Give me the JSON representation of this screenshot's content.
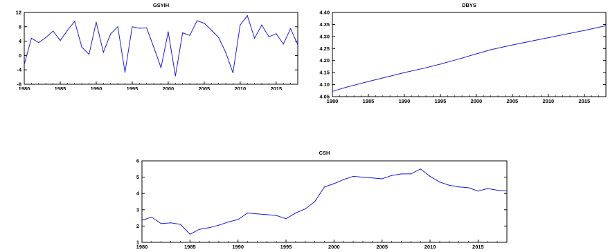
{
  "colors": {
    "line": "#1a1adc",
    "axis": "#000000"
  },
  "chart_data": [
    {
      "type": "line",
      "title": "GSYIH",
      "xlabel": "",
      "ylabel": "",
      "xlim": [
        1980,
        2018
      ],
      "ylim": [
        -8,
        12
      ],
      "xticks": [
        1980,
        1985,
        1990,
        1995,
        2000,
        2005,
        2010,
        2015
      ],
      "yticks": [
        -8,
        -4,
        0,
        4,
        8,
        12
      ],
      "grid": false,
      "x": [
        1980,
        1981,
        1982,
        1983,
        1984,
        1985,
        1986,
        1987,
        1988,
        1989,
        1990,
        1991,
        1992,
        1993,
        1994,
        1995,
        1996,
        1997,
        1998,
        1999,
        2000,
        2001,
        2002,
        2003,
        2004,
        2005,
        2006,
        2007,
        2008,
        2009,
        2010,
        2011,
        2012,
        2013,
        2014,
        2015,
        2016,
        2017,
        2018
      ],
      "values": [
        -2.5,
        4.8,
        3.6,
        5.0,
        6.8,
        4.2,
        7.0,
        9.5,
        2.3,
        0.3,
        9.3,
        0.9,
        6.0,
        8.0,
        -4.7,
        8.0,
        7.6,
        7.7,
        2.3,
        -3.4,
        6.6,
        -5.7,
        6.3,
        5.6,
        9.7,
        9.0,
        7.1,
        5.0,
        0.8,
        -4.8,
        8.5,
        11.1,
        4.8,
        8.5,
        5.2,
        6.1,
        3.2,
        7.5,
        3.0
      ]
    },
    {
      "type": "line",
      "title": "DBYS",
      "xlabel": "",
      "ylabel": "",
      "xlim": [
        1980,
        2018
      ],
      "ylim": [
        4.05,
        4.4
      ],
      "xticks": [
        1980,
        1985,
        1990,
        1995,
        2000,
        2005,
        2010,
        2015
      ],
      "yticks": [
        4.05,
        4.1,
        4.15,
        4.2,
        4.25,
        4.3,
        4.35,
        4.4
      ],
      "ytick_labels": [
        "4.05",
        "4.10",
        "4.15",
        "4.20",
        "4.25",
        "4.30",
        "4.35",
        "4.40"
      ],
      "grid": false,
      "x": [
        1980,
        1982,
        1985,
        1988,
        1990,
        1993,
        1995,
        1998,
        2000,
        2002,
        2005,
        2008,
        2010,
        2013,
        2015,
        2018
      ],
      "values": [
        4.072,
        4.09,
        4.113,
        4.135,
        4.15,
        4.17,
        4.185,
        4.21,
        4.228,
        4.245,
        4.265,
        4.283,
        4.295,
        4.313,
        4.325,
        4.345
      ]
    },
    {
      "type": "line",
      "title": "CSH",
      "xlabel": "",
      "ylabel": "",
      "xlim": [
        1980,
        2018
      ],
      "ylim": [
        1,
        6
      ],
      "xticks": [
        1980,
        1985,
        1990,
        1995,
        2000,
        2005,
        2010,
        2015
      ],
      "yticks": [
        1,
        2,
        3,
        4,
        5,
        6
      ],
      "grid": false,
      "x": [
        1980,
        1981,
        1982,
        1983,
        1984,
        1985,
        1986,
        1987,
        1988,
        1989,
        1990,
        1991,
        1992,
        1993,
        1994,
        1995,
        1996,
        1997,
        1998,
        1999,
        2000,
        2001,
        2002,
        2003,
        2004,
        2005,
        2006,
        2007,
        2008,
        2009,
        2010,
        2011,
        2012,
        2013,
        2014,
        2015,
        2016,
        2017,
        2018
      ],
      "values": [
        2.35,
        2.55,
        2.15,
        2.2,
        2.1,
        1.5,
        1.8,
        1.9,
        2.05,
        2.25,
        2.4,
        2.8,
        2.75,
        2.7,
        2.65,
        2.45,
        2.8,
        3.05,
        3.5,
        4.4,
        4.6,
        4.85,
        5.05,
        5.0,
        4.95,
        4.9,
        5.1,
        5.2,
        5.2,
        5.5,
        5.05,
        4.7,
        4.5,
        4.4,
        4.35,
        4.15,
        4.3,
        4.2,
        4.15
      ]
    }
  ]
}
